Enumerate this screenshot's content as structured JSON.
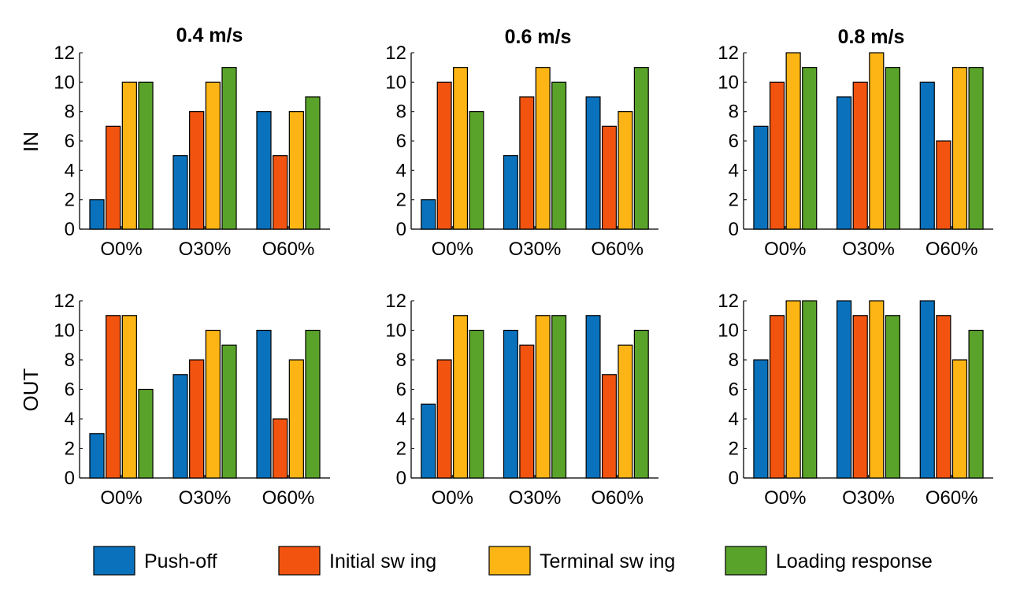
{
  "chart_data": {
    "type": "bar",
    "column_titles": [
      "0.4 m/s",
      "0.6 m/s",
      "0.8 m/s"
    ],
    "row_labels": [
      "IN",
      "OUT"
    ],
    "categories": [
      "O0%",
      "O30%",
      "O60%"
    ],
    "ylim": [
      0,
      12
    ],
    "yticks": [
      "0",
      "2",
      "4",
      "6",
      "8",
      "10",
      "12"
    ],
    "legend": [
      {
        "name": "Push-off",
        "color": "#0a72bd"
      },
      {
        "name": "Initial sw ing",
        "color": "#f25410"
      },
      {
        "name": "Terminal sw ing",
        "color": "#fcb514"
      },
      {
        "name": "Loading response",
        "color": "#5aa32b"
      }
    ],
    "panels": [
      {
        "row": "IN",
        "column": "0.4 m/s",
        "series": [
          {
            "name": "Push-off",
            "values": [
              2,
              5,
              8
            ]
          },
          {
            "name": "Initial sw ing",
            "values": [
              7,
              8,
              5
            ]
          },
          {
            "name": "Terminal sw ing",
            "values": [
              10,
              10,
              8
            ]
          },
          {
            "name": "Loading response",
            "values": [
              10,
              11,
              9
            ]
          }
        ]
      },
      {
        "row": "IN",
        "column": "0.6 m/s",
        "series": [
          {
            "name": "Push-off",
            "values": [
              2,
              5,
              9
            ]
          },
          {
            "name": "Initial sw ing",
            "values": [
              10,
              9,
              7
            ]
          },
          {
            "name": "Terminal sw ing",
            "values": [
              11,
              11,
              8
            ]
          },
          {
            "name": "Loading response",
            "values": [
              8,
              10,
              11
            ]
          }
        ]
      },
      {
        "row": "IN",
        "column": "0.8 m/s",
        "series": [
          {
            "name": "Push-off",
            "values": [
              7,
              9,
              10
            ]
          },
          {
            "name": "Initial sw ing",
            "values": [
              10,
              10,
              6
            ]
          },
          {
            "name": "Terminal sw ing",
            "values": [
              12,
              12,
              11
            ]
          },
          {
            "name": "Loading response",
            "values": [
              11,
              11,
              11
            ]
          }
        ]
      },
      {
        "row": "OUT",
        "column": "0.4 m/s",
        "series": [
          {
            "name": "Push-off",
            "values": [
              3,
              7,
              10
            ]
          },
          {
            "name": "Initial sw ing",
            "values": [
              11,
              8,
              4
            ]
          },
          {
            "name": "Terminal sw ing",
            "values": [
              11,
              10,
              8
            ]
          },
          {
            "name": "Loading response",
            "values": [
              6,
              9,
              10
            ]
          }
        ]
      },
      {
        "row": "OUT",
        "column": "0.6 m/s",
        "series": [
          {
            "name": "Push-off",
            "values": [
              5,
              10,
              11
            ]
          },
          {
            "name": "Initial sw ing",
            "values": [
              8,
              9,
              7
            ]
          },
          {
            "name": "Terminal sw ing",
            "values": [
              11,
              11,
              9
            ]
          },
          {
            "name": "Loading response",
            "values": [
              10,
              11,
              10
            ]
          }
        ]
      },
      {
        "row": "OUT",
        "column": "0.8 m/s",
        "series": [
          {
            "name": "Push-off",
            "values": [
              8,
              12,
              12
            ]
          },
          {
            "name": "Initial sw ing",
            "values": [
              11,
              11,
              11
            ]
          },
          {
            "name": "Terminal sw ing",
            "values": [
              12,
              12,
              8
            ]
          },
          {
            "name": "Loading response",
            "values": [
              12,
              11,
              10
            ]
          }
        ]
      }
    ]
  }
}
